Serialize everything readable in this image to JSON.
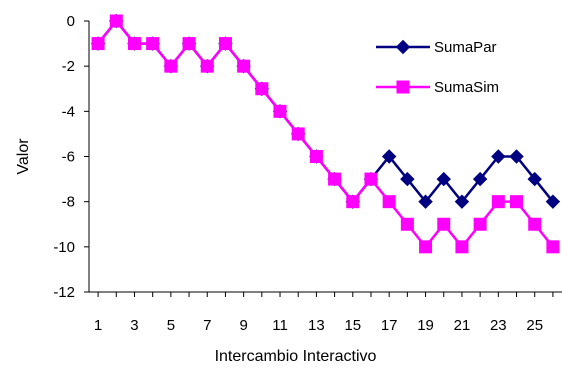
{
  "chart_data": {
    "type": "line",
    "title": "",
    "xlabel": "Intercambio Interactivo",
    "ylabel": "Valor",
    "x": [
      1,
      2,
      3,
      4,
      5,
      6,
      7,
      8,
      9,
      10,
      11,
      12,
      13,
      14,
      15,
      16,
      17,
      18,
      19,
      20,
      21,
      22,
      23,
      24,
      25,
      26
    ],
    "xticks": [
      1,
      3,
      5,
      7,
      9,
      11,
      13,
      15,
      17,
      19,
      21,
      23,
      25
    ],
    "xlim": [
      0.5,
      26.5
    ],
    "ylim": [
      -12,
      0
    ],
    "yticks": [
      0,
      -2,
      -4,
      -6,
      -8,
      -10,
      -12
    ],
    "grid": false,
    "legend_position": "top-right",
    "series": [
      {
        "name": "SumaPar",
        "color": "#000080",
        "marker": "diamond",
        "values": [
          -1,
          0,
          -1,
          -1,
          -2,
          -1,
          -2,
          -1,
          -2,
          -3,
          -4,
          -5,
          -6,
          -7,
          -8,
          -7,
          -6,
          -7,
          -8,
          -7,
          -8,
          -7,
          -6,
          -6,
          -7,
          -8
        ]
      },
      {
        "name": "SumaSim",
        "color": "#FF00FF",
        "marker": "square",
        "values": [
          -1,
          0,
          -1,
          -1,
          -2,
          -1,
          -2,
          -1,
          -2,
          -3,
          -4,
          -5,
          -6,
          -7,
          -8,
          -7,
          -8,
          -9,
          -10,
          -9,
          -10,
          -9,
          -8,
          -8,
          -9,
          -10
        ]
      }
    ]
  }
}
